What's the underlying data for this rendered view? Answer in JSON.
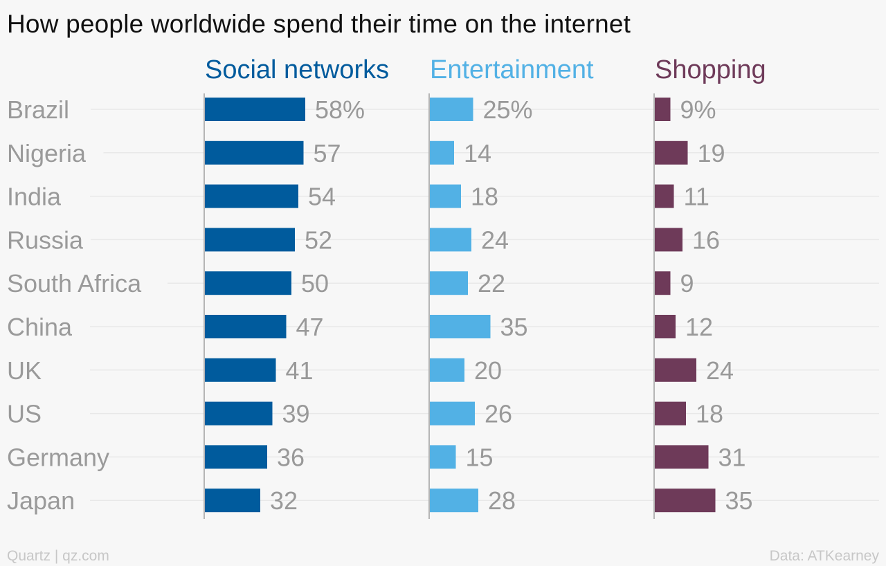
{
  "title": "How people worldwide spend their time on the internet",
  "source_left": "Quartz | qz.com",
  "source_right": "Data: ATKearney",
  "colors": {
    "Social networks": "#005b9d",
    "Entertainment": "#52b1e5",
    "Shopping": "#6e3a59",
    "category_label": "#9a9a9a",
    "value_label": "#999999",
    "gridline": "#e8e8e8",
    "axis": "#b5b5b5"
  },
  "chart_data": {
    "type": "bar",
    "orientation": "horizontal",
    "unit": "%",
    "categories": [
      "Brazil",
      "Nigeria",
      "India",
      "Russia",
      "South Africa",
      "China",
      "UK",
      "US",
      "Germany",
      "Japan"
    ],
    "series": [
      {
        "name": "Social networks",
        "values": [
          58,
          57,
          54,
          52,
          50,
          47,
          41,
          39,
          36,
          32
        ]
      },
      {
        "name": "Entertainment",
        "values": [
          25,
          14,
          18,
          24,
          22,
          35,
          20,
          26,
          15,
          28
        ]
      },
      {
        "name": "Shopping",
        "values": [
          9,
          19,
          11,
          16,
          9,
          12,
          24,
          18,
          31,
          35
        ]
      }
    ],
    "value_labels": [
      [
        "58%",
        "57",
        "54",
        "52",
        "50",
        "47",
        "41",
        "39",
        "36",
        "32"
      ],
      [
        "25%",
        "14",
        "18",
        "24",
        "22",
        "35",
        "20",
        "26",
        "15",
        "28"
      ],
      [
        "9%",
        "19",
        "11",
        "16",
        "9",
        "12",
        "24",
        "18",
        "31",
        "35"
      ]
    ],
    "grid": true,
    "layout": "small-multiples"
  }
}
